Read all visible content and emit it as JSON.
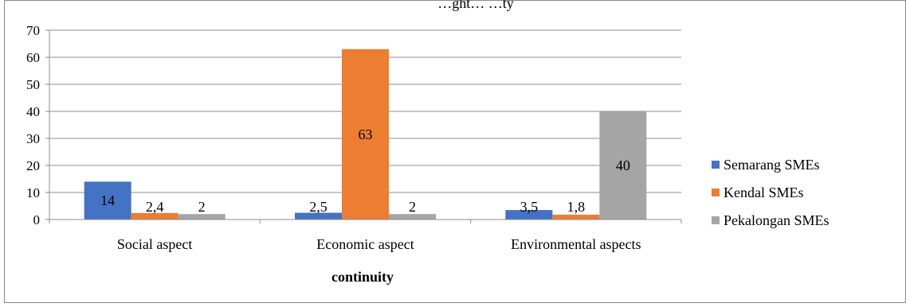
{
  "chart_data": {
    "type": "bar",
    "title": "…ght…                          …ty",
    "xlabel": "continuity",
    "ylabel": "",
    "ylim": [
      0,
      70
    ],
    "yticks": [
      0,
      10,
      20,
      30,
      40,
      50,
      60,
      70
    ],
    "grid": true,
    "legend_position": "right",
    "categories": [
      "Social aspect",
      "Economic aspect",
      "Environmental aspects"
    ],
    "series": [
      {
        "name": "Semarang SMEs",
        "color": "#4472C4",
        "values": [
          14,
          2.5,
          3.5
        ],
        "labels": [
          "14",
          "2,5",
          "3,5"
        ]
      },
      {
        "name": "Kendal SMEs",
        "color": "#ED7D31",
        "values": [
          2.4,
          63,
          1.8
        ],
        "labels": [
          "2,4",
          "63",
          "1,8"
        ]
      },
      {
        "name": "Pekalongan SMEs",
        "color": "#A5A5A5",
        "values": [
          2,
          2,
          40
        ],
        "labels": [
          "2",
          "2",
          "40"
        ]
      }
    ]
  }
}
